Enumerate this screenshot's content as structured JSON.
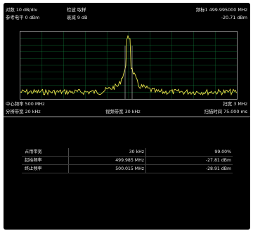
{
  "header": {
    "scale": "对数 10 dB/div",
    "detector": "检波 取样",
    "marker": "频标1  499.995000 MHz",
    "ref_level": "参考电平 0 dBm",
    "atten": "衰减 9 dB",
    "marker_level": "-20.71 dBm"
  },
  "footer": {
    "center_freq": "中心频率 500 MHz",
    "span": "扫宽 3 MHz",
    "rbw": "分辨带宽 20 kHz",
    "vbw": "视频带宽 30 kHz",
    "sweep_time": "扫描时间 75.000 ms"
  },
  "results": {
    "rows": [
      {
        "label": "占用带宽",
        "value1": "30 kHz",
        "value2": "99.00%"
      },
      {
        "label": "起始频率",
        "value1": "499.985 MHz",
        "value2": "-27.81 dBm"
      },
      {
        "label": "终止频率",
        "value1": "500.015 MHz",
        "value2": "-28.91 dBm"
      }
    ]
  },
  "colors": {
    "trace": "#e6e04a",
    "grid": "#16a34a",
    "screen_bg": "#000000"
  }
}
